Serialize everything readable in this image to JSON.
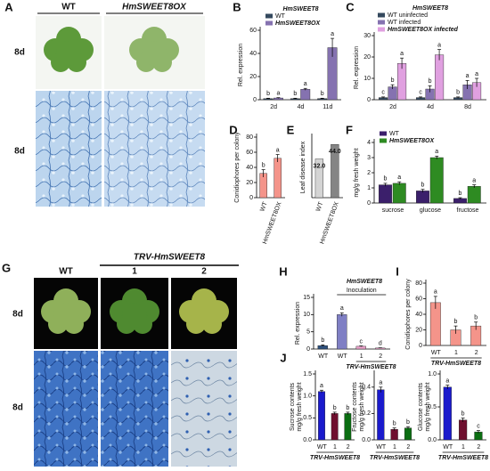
{
  "panel_letters": [
    "A",
    "B",
    "C",
    "D",
    "E",
    "F",
    "G",
    "H",
    "I",
    "J"
  ],
  "photos": {
    "A": {
      "columns": [
        "WT",
        "HmSWEET8OX"
      ],
      "rows": [
        "8d",
        "8d"
      ]
    },
    "G": {
      "header": "TRV-HmSWEET8",
      "columns": [
        "WT",
        "1",
        "2"
      ],
      "rows": [
        "8d",
        "8d"
      ]
    }
  },
  "chart_data": [
    {
      "type": "bar",
      "title": "HmSWEET8",
      "ylabel": "Rel. expression",
      "categories": [
        "2d",
        "4d",
        "11d"
      ],
      "series": [
        {
          "name": "WT",
          "color": "#34495e",
          "values": [
            1,
            1,
            1
          ],
          "errors": [
            0.3,
            0.3,
            0.3
          ],
          "letters": [
            "b",
            "b",
            "b"
          ]
        },
        {
          "name": "HmSWEET8OX",
          "color": "#8572b0",
          "values": [
            1.5,
            9,
            45
          ],
          "errors": [
            0.3,
            0.8,
            8
          ],
          "letters": [
            "a",
            "a",
            "a"
          ]
        }
      ],
      "ylim": [
        0,
        60
      ],
      "yticks": [
        0,
        20,
        40,
        60
      ],
      "legend": "top-left"
    },
    {
      "type": "bar",
      "title": "HmSWEET8",
      "ylabel": "Rel. expression",
      "categories": [
        "2d",
        "4d",
        "8d"
      ],
      "series": [
        {
          "name": "WT uninfected",
          "color": "#34495e",
          "values": [
            1,
            1,
            1
          ],
          "errors": [
            0.3,
            0.3,
            0.3
          ],
          "letters": [
            "c",
            "c",
            "b"
          ]
        },
        {
          "name": "WT infected",
          "color": "#8572b0",
          "values": [
            6,
            5,
            7
          ],
          "errors": [
            1,
            1.5,
            2
          ],
          "letters": [
            "b",
            "b",
            "a"
          ]
        },
        {
          "name": "HmSWEET8OX infected",
          "color": "#e0a0e0",
          "values": [
            17,
            21,
            8
          ],
          "errors": [
            2.5,
            2.5,
            2
          ],
          "letters": [
            "a",
            "a",
            "a"
          ]
        }
      ],
      "ylim": [
        0,
        30
      ],
      "yticks": [
        0,
        10,
        20,
        30
      ],
      "legend": "top-left"
    },
    {
      "type": "bar",
      "ylabel": "Conidiophores per colony",
      "categories": [
        "WT",
        "HmSWEET8OX"
      ],
      "values": [
        32,
        52
      ],
      "errors": [
        5,
        5
      ],
      "letters": [
        "b",
        "a"
      ],
      "color": "#f4948a",
      "ylim": [
        0,
        80
      ],
      "yticks": [
        0,
        20,
        40,
        60,
        80
      ]
    },
    {
      "type": "bar",
      "ylabel": "Leaf disease index",
      "categories": [
        "WT",
        "HmSWEET8OX"
      ],
      "values": [
        32.0,
        44.0
      ],
      "value_labels": [
        "32.0",
        "44.0"
      ],
      "colors": [
        "#d4d4d4",
        "#858585"
      ],
      "ylim": [
        0,
        50
      ]
    },
    {
      "type": "bar",
      "ylabel": "mg/g fresh weight",
      "categories": [
        "sucrose",
        "glucose",
        "fructose"
      ],
      "series": [
        {
          "name": "WT",
          "color": "#3b1f6b",
          "values": [
            1.2,
            0.8,
            0.3
          ],
          "errors": [
            0.1,
            0.1,
            0.05
          ],
          "letters": [
            "b",
            "b",
            "b"
          ]
        },
        {
          "name": "HmSWEET8OX",
          "color": "#2e8b22",
          "values": [
            1.3,
            3.0,
            1.1
          ],
          "errors": [
            0.1,
            0.1,
            0.1
          ],
          "letters": [
            "a",
            "a",
            "a"
          ]
        }
      ],
      "ylim": [
        0,
        4
      ],
      "yticks": [
        0,
        1,
        2,
        3,
        4
      ],
      "legend": "top-left"
    },
    {
      "type": "bar",
      "title": "HmSWEET8",
      "annotation": "Inoculation",
      "ylabel": "Rel. expression",
      "categories": [
        "WT",
        "WT",
        "1",
        "2"
      ],
      "group_label": "TRV-HmSWEET8",
      "values": [
        1,
        10,
        0.8,
        0.3
      ],
      "errors": [
        0.2,
        0.5,
        0.1,
        0.05
      ],
      "letters": [
        "b",
        "a",
        "c",
        "d"
      ],
      "colors": [
        "#2c4f7c",
        "#7f7fc4",
        "#e7a0c8",
        "#e7a0c8"
      ],
      "ylim": [
        0,
        15
      ],
      "yticks": [
        0,
        5,
        10,
        15
      ]
    },
    {
      "type": "bar",
      "ylabel": "Conidiophores per colony",
      "categories": [
        "WT",
        "1",
        "2"
      ],
      "group_label": "TRV-HmSWEET8",
      "values": [
        55,
        20,
        25
      ],
      "errors": [
        8,
        5,
        5
      ],
      "letters": [
        "a",
        "b",
        "b"
      ],
      "color": "#f4948a",
      "ylim": [
        0,
        80
      ],
      "yticks": [
        0,
        20,
        40,
        60,
        80
      ]
    },
    {
      "type": "bar",
      "ylabel": [
        "Sucrose contents",
        "mg/g fresh weight"
      ],
      "categories": [
        "WT",
        "1",
        "2"
      ],
      "group_label": "TRV-HmSWEET8",
      "values": [
        1.1,
        0.6,
        0.6
      ],
      "errors": [
        0.03,
        0.03,
        0.03
      ],
      "letters": [
        "a",
        "b",
        "b"
      ],
      "colors": [
        "#1a1acc",
        "#6e0f2e",
        "#0b6e12"
      ],
      "ylim": [
        0,
        1.5
      ],
      "yticks": [
        {
          "value": 0,
          "label": "0.0"
        },
        0.5,
        {
          "value": 1,
          "label": "1.0"
        },
        1.5
      ]
    },
    {
      "type": "bar",
      "ylabel": [
        "Fructose contents",
        "mg/g fresh weight"
      ],
      "categories": [
        "WT",
        "1",
        "2"
      ],
      "group_label": "TRV-HmSWEET8",
      "values": [
        0.38,
        0.08,
        0.09
      ],
      "errors": [
        0.02,
        0.01,
        0.01
      ],
      "letters": [
        "a",
        "b",
        "b"
      ],
      "colors": [
        "#1a1acc",
        "#6e0f2e",
        "#0b6e12"
      ],
      "ylim": [
        0,
        0.5
      ],
      "yticks": [
        {
          "value": 0,
          "label": "0.0"
        },
        0.2,
        0.4
      ]
    },
    {
      "type": "bar",
      "ylabel": [
        "Glucose contents",
        "mg/g fresh weight"
      ],
      "categories": [
        "WT",
        "1",
        "2"
      ],
      "group_label": "TRV-HmSWEET8",
      "values": [
        0.8,
        0.3,
        0.12
      ],
      "errors": [
        0.03,
        0.03,
        0.02
      ],
      "letters": [
        "a",
        "b",
        "c"
      ],
      "colors": [
        "#1a1acc",
        "#6e0f2e",
        "#0b6e12"
      ],
      "ylim": [
        0,
        1
      ],
      "yticks": [
        {
          "value": 0,
          "label": "0.0"
        },
        0.5,
        {
          "value": 1,
          "label": "1.0"
        }
      ]
    }
  ]
}
